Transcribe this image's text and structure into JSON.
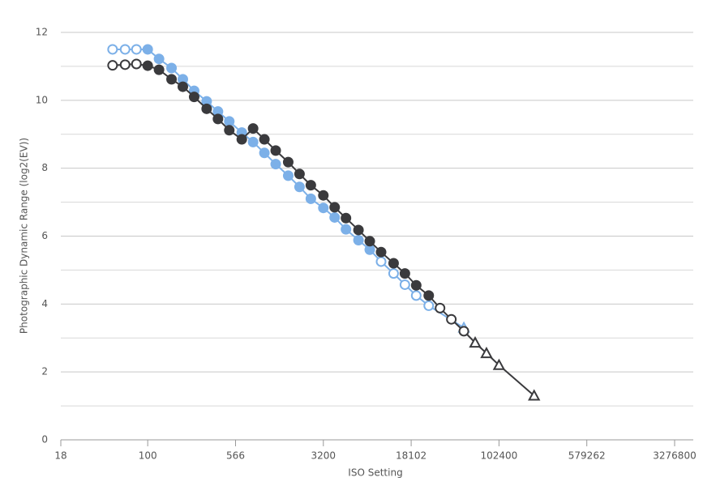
{
  "chart_data": {
    "type": "line",
    "x_label": "ISO Setting",
    "y_label": "Photographic Dynamic Range (log2(EV))",
    "xscale": "log",
    "xlim": [
      18,
      3276800
    ],
    "xticks": [
      18,
      100,
      566,
      3200,
      18102,
      102400,
      579262,
      3276800
    ],
    "ylim": [
      0,
      12
    ],
    "yticks": [
      0,
      2,
      4,
      6,
      8,
      10,
      12
    ],
    "yminorticks": [
      1,
      3,
      5,
      7,
      9,
      11
    ],
    "grid": true,
    "series": [
      {
        "color": "#7cb0e8",
        "x": [
          50,
          64,
          80,
          100,
          125,
          160,
          200,
          250,
          320,
          400,
          500,
          640,
          800,
          1000,
          1250,
          1600,
          2000,
          2500,
          3200,
          4000,
          5000,
          6400,
          8000,
          10000,
          12800,
          16000,
          20000,
          25600,
          51200
        ],
        "values": [
          11.5,
          11.5,
          11.5,
          11.5,
          11.22,
          10.95,
          10.62,
          10.28,
          9.97,
          9.67,
          9.38,
          9.05,
          8.77,
          8.45,
          8.12,
          7.78,
          7.45,
          7.1,
          6.83,
          6.55,
          6.2,
          5.88,
          5.6,
          5.25,
          4.9,
          4.57,
          4.25,
          3.95,
          3.3
        ],
        "markers": [
          "open",
          "open",
          "open",
          "filled",
          "filled",
          "filled",
          "filled",
          "filled",
          "filled",
          "filled",
          "filled",
          "filled",
          "filled",
          "filled",
          "filled",
          "filled",
          "filled",
          "filled",
          "filled",
          "filled",
          "filled",
          "filled",
          "filled",
          "open",
          "open",
          "open",
          "open",
          "open",
          "triangle"
        ]
      },
      {
        "color": "#3a3a3d",
        "x": [
          50,
          64,
          80,
          100,
          125,
          160,
          200,
          250,
          320,
          400,
          500,
          640,
          800,
          1000,
          1250,
          1600,
          2000,
          2500,
          3200,
          4000,
          5000,
          6400,
          8000,
          10000,
          12800,
          16000,
          20000,
          25600,
          32000,
          40000,
          51200,
          64000,
          80000,
          102400,
          204800
        ],
        "values": [
          11.03,
          11.05,
          11.07,
          11.02,
          10.9,
          10.62,
          10.4,
          10.1,
          9.75,
          9.45,
          9.12,
          8.85,
          9.17,
          8.85,
          8.52,
          8.18,
          7.83,
          7.5,
          7.2,
          6.85,
          6.53,
          6.18,
          5.85,
          5.53,
          5.2,
          4.9,
          4.55,
          4.25,
          3.88,
          3.55,
          3.2,
          2.86,
          2.55,
          2.2,
          1.3
        ],
        "markers": [
          "open",
          "open",
          "open",
          "filled",
          "filled",
          "filled",
          "filled",
          "filled",
          "filled",
          "filled",
          "filled",
          "filled",
          "filled",
          "filled",
          "filled",
          "filled",
          "filled",
          "filled",
          "filled",
          "filled",
          "filled",
          "filled",
          "filled",
          "filled",
          "filled",
          "filled",
          "filled",
          "filled",
          "open",
          "open",
          "open",
          "triangle",
          "triangle",
          "triangle",
          "triangle"
        ]
      }
    ]
  }
}
